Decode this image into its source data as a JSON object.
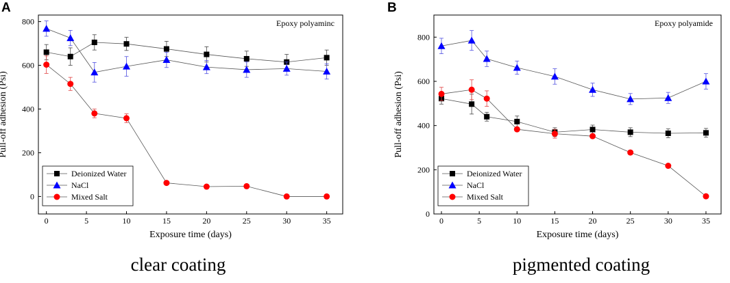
{
  "panels": [
    {
      "letter": "A",
      "caption": "clear coating"
    },
    {
      "letter": "B",
      "caption": "pigmented coating"
    }
  ],
  "chart_data": [
    {
      "type": "line",
      "title": "Epoxy polyaminc",
      "xlabel": "Exposure time (days)",
      "ylabel": "Pull-off adhesion (Psi)",
      "x": [
        0,
        3,
        6,
        10,
        15,
        20,
        25,
        30,
        35
      ],
      "xticks": [
        0,
        5,
        10,
        15,
        20,
        25,
        30,
        35
      ],
      "xlim": [
        -1,
        37
      ],
      "yticks": [
        0,
        200,
        400,
        600,
        800
      ],
      "ylim": [
        -80,
        830
      ],
      "legend_position": "bottom-left",
      "series": [
        {
          "name": "Deionized Water",
          "marker": "square",
          "color": "#000000",
          "values": [
            660,
            640,
            705,
            698,
            675,
            650,
            630,
            615,
            635
          ],
          "errors": [
            35,
            40,
            35,
            30,
            35,
            35,
            35,
            35,
            35
          ]
        },
        {
          "name": "NaCl",
          "marker": "triangle",
          "color": "#0000ff",
          "values": [
            768,
            725,
            568,
            595,
            625,
            592,
            580,
            585,
            572
          ],
          "errors": [
            35,
            35,
            45,
            45,
            35,
            30,
            35,
            30,
            35
          ]
        },
        {
          "name": "Mixed Salt",
          "marker": "circle",
          "color": "#ff0000",
          "values": [
            603,
            515,
            380,
            358,
            62,
            45,
            47,
            0,
            0
          ],
          "errors": [
            40,
            30,
            20,
            20,
            0,
            0,
            0,
            0,
            0
          ]
        }
      ]
    },
    {
      "type": "line",
      "title": "Epoxy polyamide",
      "xlabel": "Exposure time (days)",
      "ylabel": "Pull-off adhesion  (Psi)",
      "x": [
        0,
        4,
        6,
        10,
        15,
        20,
        25,
        30,
        35
      ],
      "xticks": [
        0,
        5,
        10,
        15,
        20,
        25,
        30,
        35
      ],
      "xlim": [
        -1,
        37
      ],
      "yticks": [
        0,
        200,
        400,
        600,
        800
      ],
      "ylim": [
        0,
        900
      ],
      "legend_position": "bottom-left",
      "series": [
        {
          "name": "Deionized Water",
          "marker": "square",
          "color": "#000000",
          "values": [
            522,
            497,
            440,
            418,
            370,
            382,
            370,
            365,
            367
          ],
          "errors": [
            25,
            45,
            20,
            25,
            20,
            20,
            20,
            20,
            20
          ]
        },
        {
          "name": "NaCl",
          "marker": "triangle",
          "color": "#0000ff",
          "values": [
            760,
            785,
            702,
            662,
            622,
            562,
            520,
            525,
            600
          ],
          "errors": [
            35,
            45,
            35,
            30,
            35,
            30,
            25,
            25,
            35
          ]
        },
        {
          "name": "Mixed Salt",
          "marker": "circle",
          "color": "#ff0000",
          "values": [
            543,
            562,
            522,
            383,
            363,
            352,
            278,
            218,
            80
          ],
          "errors": [
            30,
            45,
            35,
            0,
            20,
            0,
            10,
            0,
            0
          ]
        }
      ]
    }
  ]
}
